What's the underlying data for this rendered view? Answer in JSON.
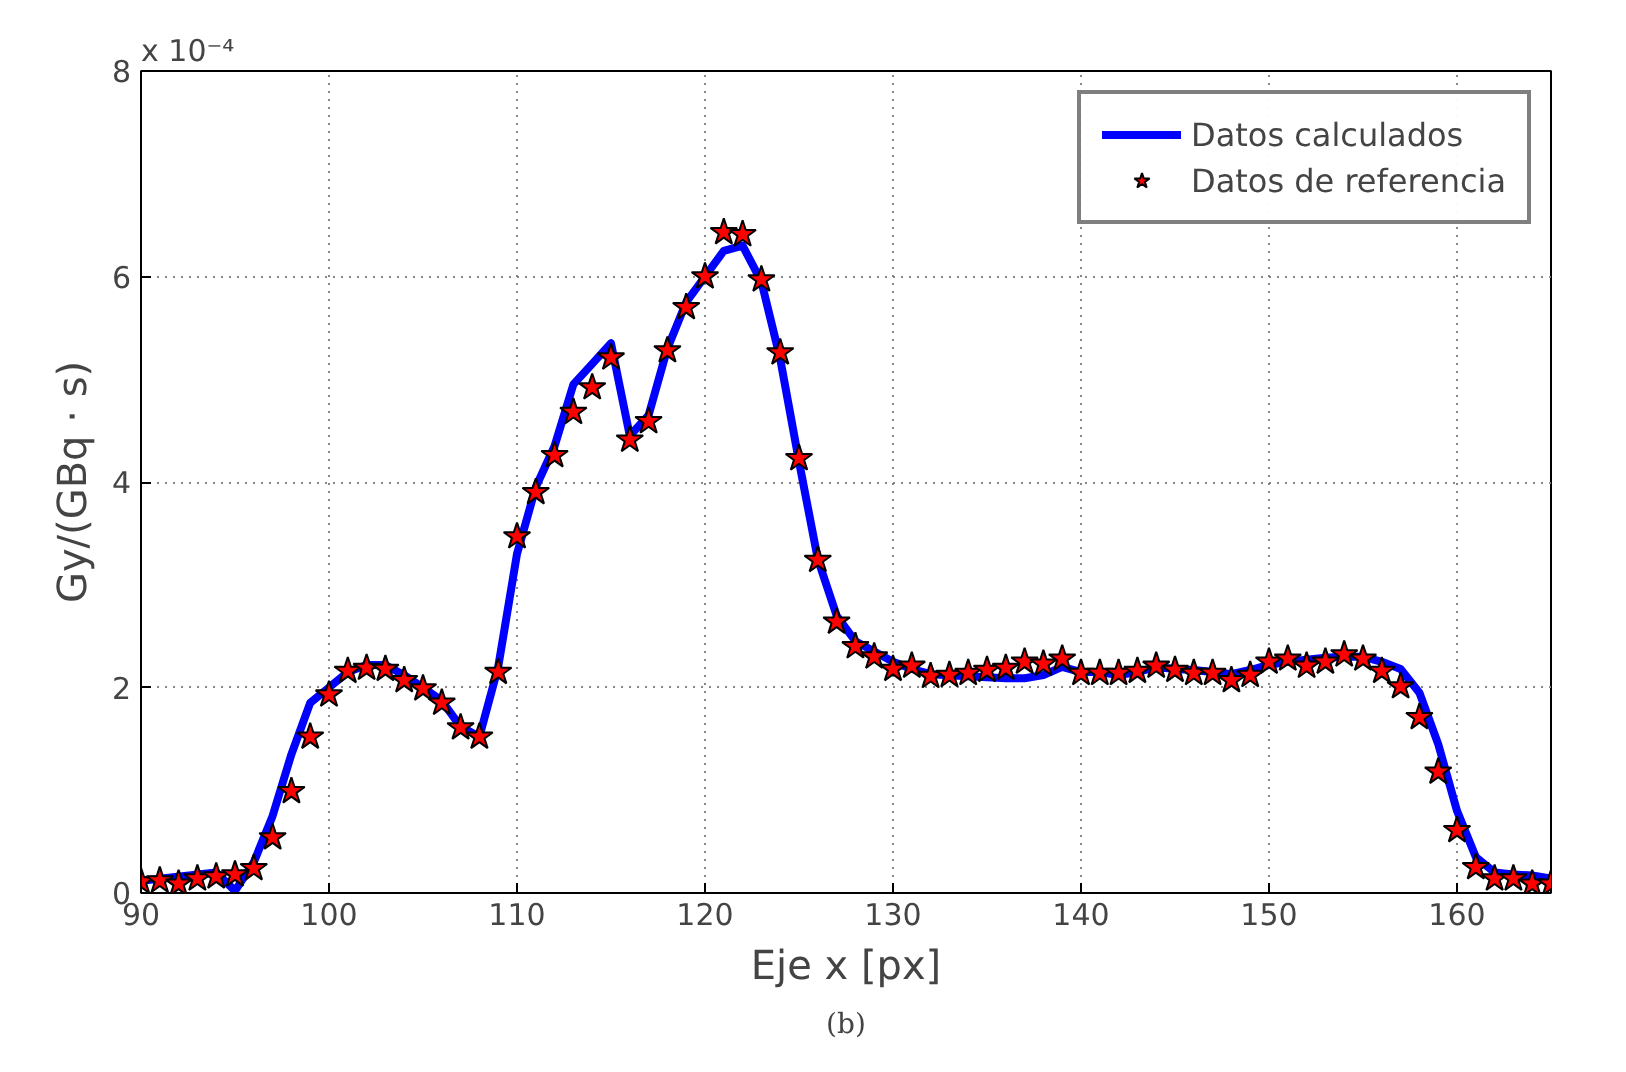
{
  "chart_data": {
    "type": "line",
    "xlabel": "Eje x [px]",
    "ylabel": "Gy/(GBq · s)",
    "xlim": [
      90,
      165
    ],
    "ylim": [
      0,
      8
    ],
    "xticks": [
      90,
      100,
      110,
      120,
      130,
      140,
      150,
      160
    ],
    "yticks": [
      0,
      2,
      4,
      6,
      8
    ],
    "grid": true,
    "legend": "top right",
    "annotations": [
      "x 10⁻⁴",
      "(b)"
    ],
    "series": [
      {
        "name": "Datos calculados",
        "color": "#0000ff",
        "marker": "none",
        "line_style": "solid",
        "x": [
          90,
          94,
          95,
          96,
          97,
          98,
          99,
          100,
          101,
          102,
          103,
          104,
          105,
          106,
          107,
          108,
          109,
          110,
          111,
          112,
          113,
          114,
          115,
          116,
          117,
          118,
          119,
          120,
          121,
          122,
          123,
          124,
          125,
          126,
          127,
          128,
          129,
          130,
          131,
          132,
          133,
          134,
          135,
          136,
          137,
          138,
          139,
          140,
          141,
          142,
          143,
          144,
          145,
          146,
          147,
          148,
          149,
          150,
          151,
          152,
          153,
          154,
          155,
          156,
          157,
          158,
          159,
          160,
          161,
          162,
          163,
          164,
          165
        ],
        "values": [
          0.12,
          0.2,
          0.02,
          0.3,
          0.75,
          1.35,
          1.85,
          2.0,
          2.15,
          2.22,
          2.22,
          2.12,
          2.0,
          1.87,
          1.62,
          1.52,
          2.2,
          3.3,
          3.95,
          4.35,
          4.95,
          5.15,
          5.35,
          4.45,
          4.65,
          5.3,
          5.75,
          6.0,
          6.25,
          6.3,
          5.95,
          5.2,
          4.2,
          3.25,
          2.7,
          2.45,
          2.35,
          2.25,
          2.18,
          2.13,
          2.12,
          2.11,
          2.1,
          2.09,
          2.09,
          2.12,
          2.2,
          2.15,
          2.15,
          2.12,
          2.15,
          2.2,
          2.18,
          2.17,
          2.15,
          2.13,
          2.17,
          2.22,
          2.25,
          2.27,
          2.29,
          2.3,
          2.3,
          2.25,
          2.18,
          1.95,
          1.45,
          0.8,
          0.35,
          0.2,
          0.18,
          0.17,
          0.14
        ]
      },
      {
        "name": "Datos de referencia",
        "type": "scatter",
        "color": "#ff0000",
        "marker": "star",
        "x": [
          90,
          91,
          92,
          93,
          94,
          95,
          96,
          97,
          98,
          99,
          100,
          101,
          102,
          103,
          104,
          105,
          106,
          107,
          108,
          109,
          110,
          111,
          112,
          113,
          114,
          115,
          116,
          117,
          118,
          119,
          120,
          121,
          122,
          123,
          124,
          125,
          126,
          127,
          128,
          129,
          130,
          131,
          132,
          133,
          134,
          135,
          136,
          137,
          138,
          139,
          140,
          141,
          142,
          143,
          144,
          145,
          146,
          147,
          148,
          149,
          150,
          151,
          152,
          153,
          154,
          155,
          156,
          157,
          158,
          159,
          160,
          161,
          162,
          163,
          164,
          165
        ],
        "values": [
          0.11,
          0.12,
          0.09,
          0.14,
          0.16,
          0.18,
          0.24,
          0.54,
          0.99,
          1.52,
          1.93,
          2.16,
          2.19,
          2.18,
          2.07,
          1.99,
          1.85,
          1.61,
          1.52,
          2.15,
          3.47,
          3.9,
          4.26,
          4.68,
          4.92,
          5.21,
          4.41,
          4.59,
          5.28,
          5.7,
          6.0,
          6.43,
          6.41,
          5.97,
          5.26,
          4.23,
          3.24,
          2.64,
          2.4,
          2.3,
          2.18,
          2.21,
          2.11,
          2.12,
          2.14,
          2.17,
          2.19,
          2.25,
          2.23,
          2.28,
          2.14,
          2.14,
          2.14,
          2.16,
          2.21,
          2.17,
          2.14,
          2.14,
          2.07,
          2.12,
          2.25,
          2.28,
          2.21,
          2.25,
          2.32,
          2.28,
          2.16,
          2.01,
          1.71,
          1.18,
          0.61,
          0.25,
          0.14,
          0.14,
          0.09,
          0.09
        ]
      }
    ]
  }
}
